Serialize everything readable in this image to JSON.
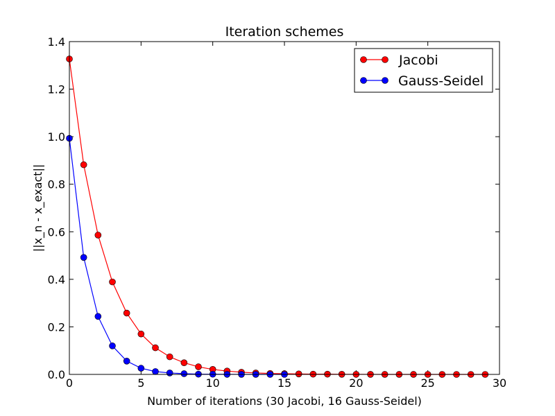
{
  "chart_data": {
    "type": "line",
    "title": "Iteration schemes",
    "xlabel": "Number of iterations (30 Jacobi, 16 Gauss-Seidel)",
    "ylabel": "||x_n - x_exact||",
    "xlim": [
      0,
      30
    ],
    "ylim": [
      0,
      1.4
    ],
    "xticks": [
      "0",
      "5",
      "10",
      "15",
      "20",
      "25",
      "30"
    ],
    "yticks": [
      "0.0",
      "0.2",
      "0.4",
      "0.6",
      "0.8",
      "1.0",
      "1.2",
      "1.4"
    ],
    "grid": false,
    "legend_position": "top-right",
    "series": [
      {
        "name": "Jacobi",
        "color": "#ff0000",
        "marker": "circle",
        "x": [
          0,
          1,
          2,
          3,
          4,
          5,
          6,
          7,
          8,
          9,
          10,
          11,
          12,
          13,
          14,
          15,
          16,
          17,
          18,
          19,
          20,
          21,
          22,
          23,
          24,
          25,
          26,
          27,
          28,
          29
        ],
        "values": [
          1.327,
          0.882,
          0.586,
          0.389,
          0.258,
          0.17,
          0.112,
          0.074,
          0.049,
          0.032,
          0.021,
          0.014,
          0.009,
          0.006,
          0.004,
          0.003,
          0.002,
          0.001,
          0.001,
          0.0005,
          0.0003,
          0.0002,
          0.0001,
          0.0001,
          0.0001,
          0.0,
          0.0,
          0.0,
          0.0,
          0.0
        ]
      },
      {
        "name": "Gauss-Seidel",
        "color": "#0000ff",
        "marker": "circle",
        "x": [
          0,
          1,
          2,
          3,
          4,
          5,
          6,
          7,
          8,
          9,
          10,
          11,
          12,
          13,
          14,
          15
        ],
        "values": [
          0.993,
          0.492,
          0.244,
          0.12,
          0.056,
          0.026,
          0.012,
          0.006,
          0.003,
          0.001,
          0.0007,
          0.0003,
          0.0002,
          0.0001,
          0.0,
          0.0
        ]
      }
    ]
  }
}
